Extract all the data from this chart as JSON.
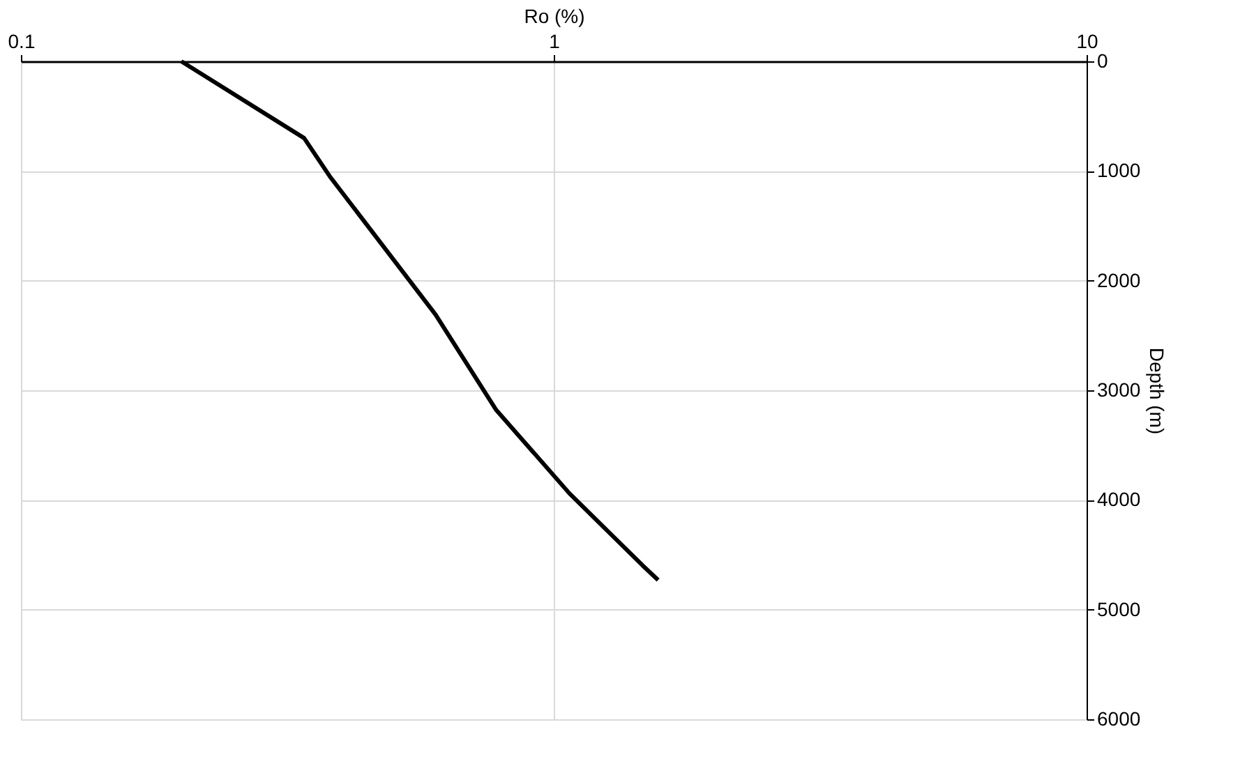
{
  "chart_data": {
    "type": "line",
    "xlabel": "Ro (%)",
    "ylabel": "Depth (m)",
    "x": [
      0.2,
      0.34,
      0.38,
      0.6,
      0.78,
      0.88,
      1.07,
      1.47,
      1.57
    ],
    "series": [
      {
        "color": "#000000",
        "values": [
          0,
          700,
          1050,
          2310,
          3180,
          3470,
          3940,
          4600,
          4730
        ]
      }
    ],
    "log": "x",
    "xlim": [
      0.1,
      10
    ],
    "xticks": [
      0.1,
      1,
      10
    ],
    "ylim": [
      6000,
      0
    ],
    "yticks": [
      0,
      1000,
      2000,
      3000,
      4000,
      5000,
      6000
    ],
    "grid": true,
    "marker": "none",
    "line_style": "solid"
  }
}
